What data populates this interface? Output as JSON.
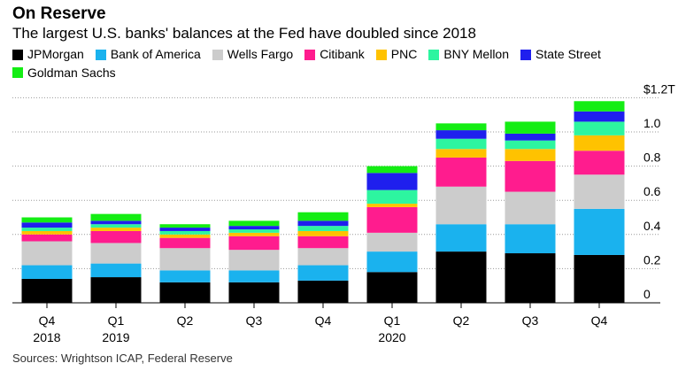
{
  "header": {
    "title": "On Reserve",
    "subtitle": "The largest U.S. banks' balances at the Fed have doubled since 2018"
  },
  "source": "Sources: Wrightson ICAP, Federal Reserve",
  "chart_data": {
    "type": "bar",
    "stacked": true,
    "categories": [
      "Q4 2018",
      "Q1 2019",
      "Q2 2019",
      "Q3 2019",
      "Q4 2019",
      "Q1 2020",
      "Q2 2020",
      "Q3 2020",
      "Q4 2020"
    ],
    "x_tick_labels": [
      [
        "Q4",
        "2018"
      ],
      [
        "Q1",
        "2019"
      ],
      [
        "Q2",
        ""
      ],
      [
        "Q3",
        ""
      ],
      [
        "Q4",
        ""
      ],
      [
        "Q1",
        "2020"
      ],
      [
        "Q2",
        ""
      ],
      [
        "Q3",
        ""
      ],
      [
        "Q4",
        ""
      ]
    ],
    "y_ticks": [
      0,
      0.2,
      0.4,
      0.6,
      0.8,
      1.0,
      1.2
    ],
    "y_tick_labels": [
      "0",
      "0.2",
      "0.4",
      "0.6",
      "0.8",
      "1.0",
      "$1.2T"
    ],
    "ylim": [
      0,
      1.2
    ],
    "grid": true,
    "legend_position": "top",
    "series": [
      {
        "name": "JPMorgan",
        "color": "#000000",
        "values": [
          0.14,
          0.15,
          0.12,
          0.12,
          0.13,
          0.18,
          0.3,
          0.29,
          0.28
        ]
      },
      {
        "name": "Bank of America",
        "color": "#1ab2ee",
        "values": [
          0.08,
          0.08,
          0.07,
          0.07,
          0.09,
          0.12,
          0.16,
          0.17,
          0.27
        ]
      },
      {
        "name": "Wells Fargo",
        "color": "#cccccc",
        "values": [
          0.14,
          0.12,
          0.13,
          0.12,
          0.1,
          0.11,
          0.22,
          0.19,
          0.2
        ]
      },
      {
        "name": "Citibank",
        "color": "#ff1c8e",
        "values": [
          0.04,
          0.07,
          0.06,
          0.08,
          0.07,
          0.15,
          0.17,
          0.18,
          0.14
        ]
      },
      {
        "name": "PNC",
        "color": "#ffc200",
        "values": [
          0.02,
          0.02,
          0.02,
          0.02,
          0.03,
          0.02,
          0.05,
          0.07,
          0.09
        ]
      },
      {
        "name": "BNY Mellon",
        "color": "#2df5a0",
        "values": [
          0.02,
          0.02,
          0.02,
          0.02,
          0.03,
          0.08,
          0.06,
          0.05,
          0.08
        ]
      },
      {
        "name": "State Street",
        "color": "#1f1fee",
        "values": [
          0.03,
          0.02,
          0.02,
          0.02,
          0.03,
          0.1,
          0.05,
          0.04,
          0.06
        ]
      },
      {
        "name": "Goldman Sachs",
        "color": "#14ed14",
        "values": [
          0.03,
          0.04,
          0.02,
          0.03,
          0.05,
          0.04,
          0.04,
          0.07,
          0.06
        ]
      }
    ]
  }
}
